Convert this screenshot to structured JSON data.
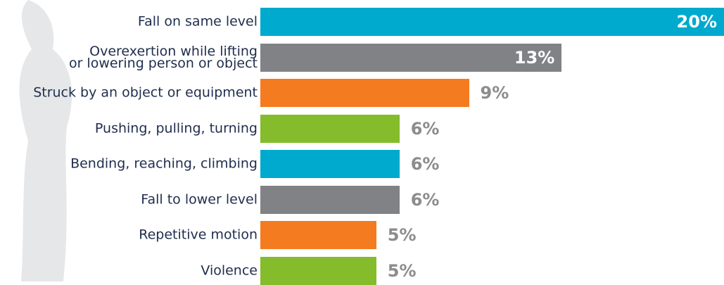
{
  "chart_data": {
    "type": "bar",
    "orientation": "horizontal",
    "categories": [
      "Fall on same level",
      "Overexertion while lifting\nor lowering person or object",
      "Struck by an object or equipment",
      "Pushing, pulling, turning",
      "Bending, reaching, climbing",
      "Fall to lower level",
      "Repetitive motion",
      "Violence"
    ],
    "values": [
      20,
      13,
      9,
      6,
      6,
      6,
      5,
      5
    ],
    "value_labels": [
      "20%",
      "13%",
      "9%",
      "6%",
      "6%",
      "6%",
      "5%",
      "5%"
    ],
    "colors": [
      "#00a9ce",
      "#808285",
      "#f47b20",
      "#84bc2b",
      "#00a9ce",
      "#808285",
      "#f47b20",
      "#84bc2b"
    ]
  }
}
